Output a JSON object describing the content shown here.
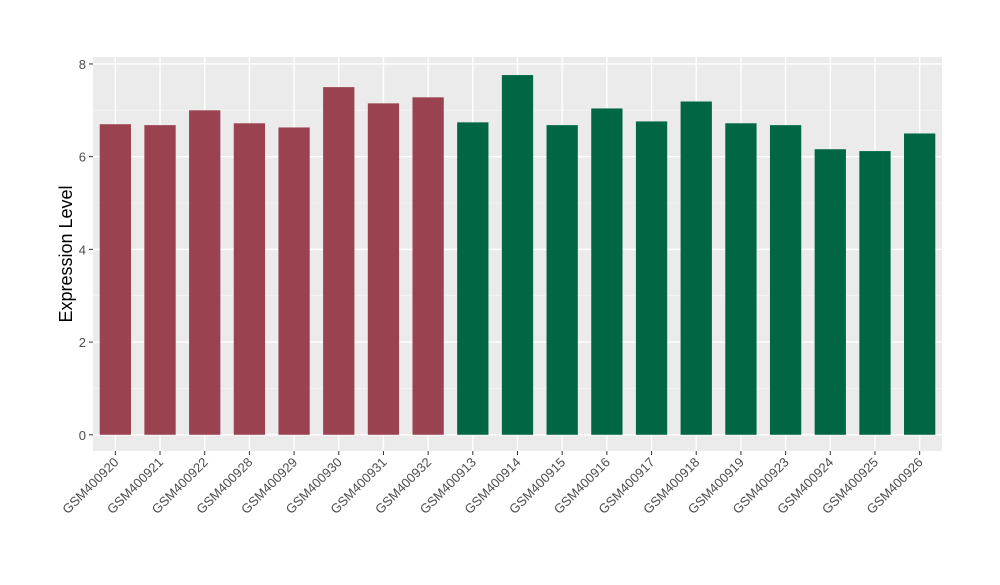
{
  "chart_data": {
    "type": "bar",
    "title": "",
    "xlabel": "",
    "ylabel": "Expression Level",
    "ylim": [
      -0.35,
      8.15
    ],
    "yticks": [
      0,
      2,
      4,
      6,
      8
    ],
    "grid": true,
    "legend": "none",
    "categories": [
      "GSM400920",
      "GSM400921",
      "GSM400922",
      "GSM400928",
      "GSM400929",
      "GSM400930",
      "GSM400931",
      "GSM400932",
      "GSM400913",
      "GSM400914",
      "GSM400915",
      "GSM400916",
      "GSM400917",
      "GSM400918",
      "GSM400919",
      "GSM400923",
      "GSM400924",
      "GSM400925",
      "GSM400926"
    ],
    "values": [
      6.7,
      6.68,
      7.0,
      6.72,
      6.63,
      7.5,
      7.15,
      7.28,
      6.74,
      7.76,
      6.68,
      7.04,
      6.76,
      7.19,
      6.72,
      6.68,
      6.16,
      6.12,
      6.5
    ],
    "groups": [
      {
        "color": "#9a4250",
        "indices": [
          0,
          1,
          2,
          3,
          4,
          5,
          6,
          7
        ]
      },
      {
        "color": "#016644",
        "indices": [
          8,
          9,
          10,
          11,
          12,
          13,
          14,
          15,
          16,
          17,
          18
        ]
      }
    ],
    "colors": {
      "panel_background": "#ebebeb",
      "grid_major": "#ffffff",
      "grid_minor": "#f5f5f5",
      "axis_text": "#4d4d4d",
      "axis_title": "#000000"
    }
  }
}
